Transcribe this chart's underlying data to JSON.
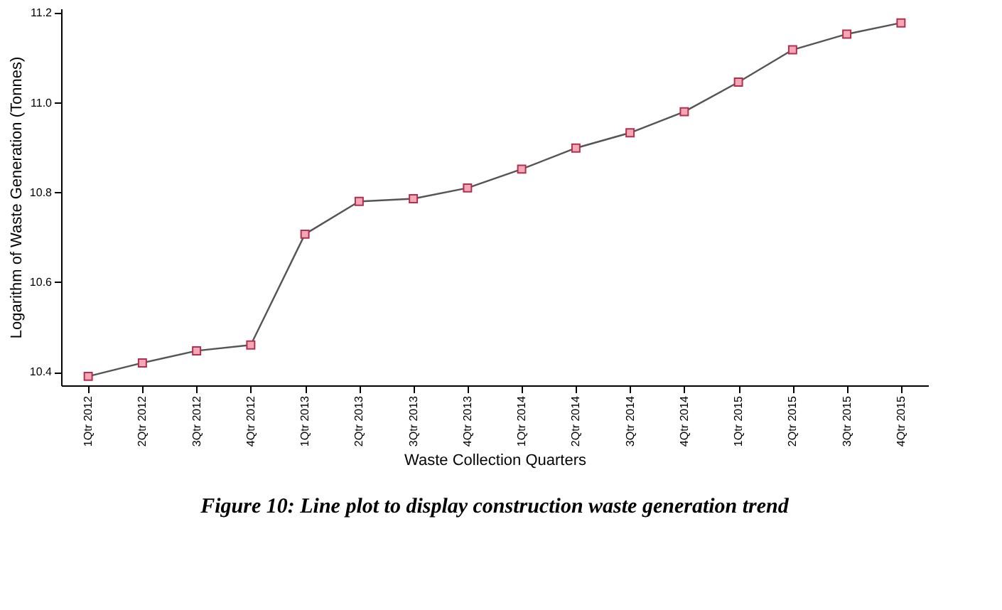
{
  "chart_data": {
    "type": "line",
    "xlabel": "Waste Collection Quarters",
    "ylabel": "Logarithm of Waste Generation (Tonnes)",
    "categories": [
      "1Qtr 2012",
      "2Qtr 2012",
      "3Qtr 2012",
      "4Qtr 2012",
      "1Qtr 2013",
      "2Qtr 2013",
      "3Qtr 2013",
      "4Qtr 2013",
      "1Qtr 2014",
      "2Qtr 2014",
      "3Qtr 2014",
      "4Qtr 2014",
      "1Qtr 2015",
      "2Qtr 2015",
      "3Qtr 2015",
      "4Qtr 2015"
    ],
    "series": [
      {
        "color": "#555555",
        "values": [
          10.39,
          10.42,
          10.447,
          10.46,
          10.707,
          10.78,
          10.786,
          10.81,
          10.852,
          10.899,
          10.933,
          10.98,
          11.046,
          11.118,
          11.153,
          11.178
        ]
      }
    ],
    "ylim": [
      10.37,
      11.21
    ],
    "yticks": [
      {
        "value": 10.4,
        "label": "10.4"
      },
      {
        "value": 10.6,
        "label": "10.6"
      },
      {
        "value": 10.8,
        "label": "10.8"
      },
      {
        "value": 11.0,
        "label": "11.0"
      },
      {
        "value": 11.2,
        "label": "11.2"
      }
    ],
    "marker": "square",
    "line_style": "solid",
    "grid": false,
    "legend": false,
    "annotations": [
      "Figure 10: Line plot to display construction waste generation trend"
    ]
  }
}
